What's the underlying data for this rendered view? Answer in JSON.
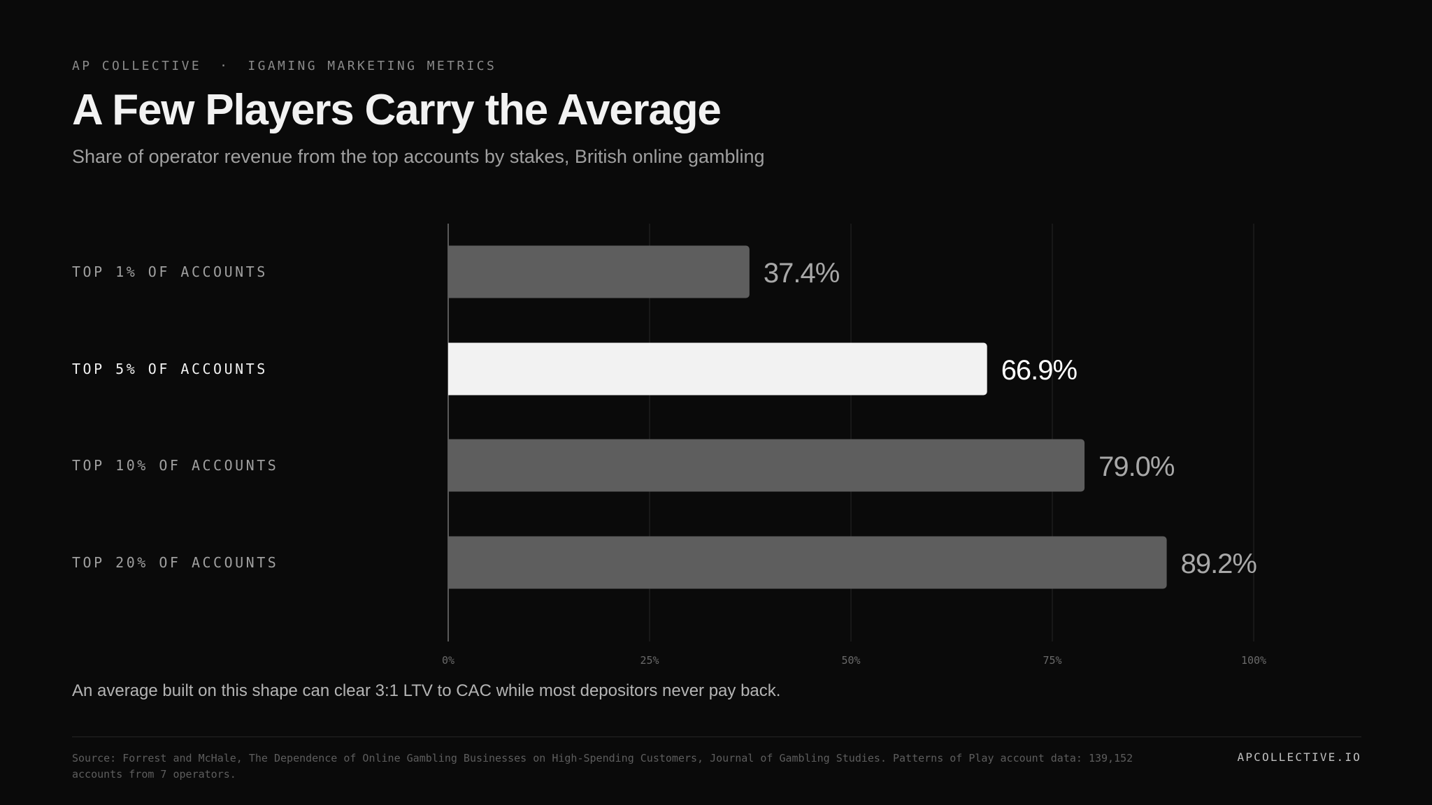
{
  "header": {
    "brand": "AP COLLECTIVE",
    "separator": "·",
    "section": "IGAMING MARKETING METRICS"
  },
  "chart_data": {
    "type": "bar",
    "orientation": "horizontal",
    "title": "A Few Players Carry the Average",
    "subtitle": "Share of operator revenue from the top accounts by stakes, British online gambling",
    "categories": [
      "TOP 1% OF ACCOUNTS",
      "TOP 5% OF ACCOUNTS",
      "TOP 10% OF ACCOUNTS",
      "TOP 20% OF ACCOUNTS"
    ],
    "values": [
      37.4,
      66.9,
      79.0,
      89.2
    ],
    "value_labels": [
      "37.4%",
      "66.9%",
      "79.0%",
      "89.2%"
    ],
    "highlight_index": 1,
    "xlim": [
      0,
      100
    ],
    "x_ticks": [
      0,
      25,
      50,
      75,
      100
    ],
    "x_tick_labels": [
      "0%",
      "25%",
      "50%",
      "75%",
      "100%"
    ],
    "grid": true,
    "colors": {
      "bar": "#5e5e5e",
      "bar_highlight": "#f2f2f2",
      "label": "#a8a8a8",
      "label_highlight": "#ffffff"
    }
  },
  "note": "An average built on this shape can clear 3:1 LTV to CAC while most depositors never pay back.",
  "footer": {
    "source": "Source: Forrest and McHale, The Dependence of Online Gambling Businesses on High-Spending Customers, Journal of Gambling Studies. Patterns of Play account data: 139,152 accounts from 7 operators.",
    "site": "APCOLLECTIVE.IO"
  }
}
